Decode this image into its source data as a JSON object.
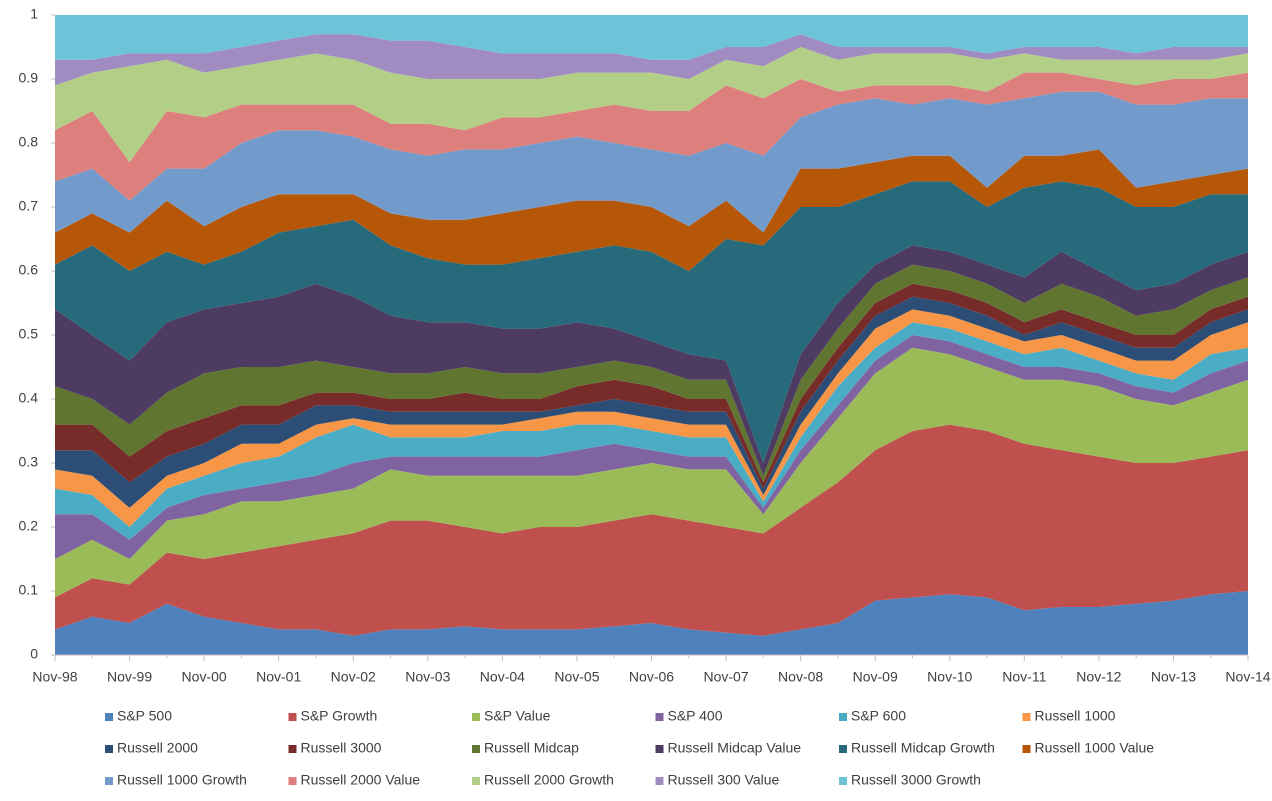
{
  "chart_data": {
    "type": "stacked_area",
    "categories": [
      "Nov-98",
      null,
      "Nov-99",
      null,
      "Nov-00",
      null,
      "Nov-01",
      null,
      "Nov-02",
      null,
      "Nov-03",
      null,
      "Nov-04",
      null,
      "Nov-05",
      null,
      "Nov-06",
      null,
      "Nov-07",
      null,
      "Nov-08",
      null,
      "Nov-09",
      null,
      "Nov-10",
      null,
      "Nov-11",
      null,
      "Nov-12",
      null,
      "Nov-13",
      null,
      "Nov-14"
    ],
    "ylim": [
      0,
      1
    ],
    "yticks": [
      0,
      0.1,
      0.2,
      0.3,
      0.4,
      0.5,
      0.6,
      0.7,
      0.8,
      0.9,
      1
    ],
    "legend": "bottom",
    "series": [
      {
        "name": "S&P 500",
        "color": "#4f81bd",
        "values": [
          0.04,
          0.06,
          0.05,
          0.08,
          0.06,
          0.05,
          0.04,
          0.04,
          0.03,
          0.04,
          0.04,
          0.045,
          0.04,
          0.04,
          0.04,
          0.045,
          0.05,
          0.04,
          0.035,
          0.03,
          0.04,
          0.05,
          0.085,
          0.09,
          0.095,
          0.09,
          0.07,
          0.075,
          0.075,
          0.08,
          0.085,
          0.095,
          0.1
        ]
      },
      {
        "name": "S&P Growth",
        "color": "#c0504d",
        "values": [
          0.05,
          0.06,
          0.06,
          0.08,
          0.09,
          0.11,
          0.13,
          0.14,
          0.16,
          0.17,
          0.17,
          0.155,
          0.15,
          0.16,
          0.16,
          0.165,
          0.17,
          0.17,
          0.165,
          0.16,
          0.19,
          0.22,
          0.235,
          0.26,
          0.265,
          0.26,
          0.26,
          0.245,
          0.235,
          0.22,
          0.215,
          0.215,
          0.22
        ]
      },
      {
        "name": "S&P Value",
        "color": "#9bbb59",
        "values": [
          0.06,
          0.06,
          0.04,
          0.05,
          0.07,
          0.08,
          0.07,
          0.07,
          0.07,
          0.08,
          0.07,
          0.08,
          0.09,
          0.08,
          0.08,
          0.08,
          0.08,
          0.08,
          0.09,
          0.03,
          0.07,
          0.1,
          0.12,
          0.13,
          0.11,
          0.1,
          0.1,
          0.11,
          0.11,
          0.1,
          0.09,
          0.1,
          0.11
        ]
      },
      {
        "name": "S&P 400",
        "color": "#8064a2",
        "values": [
          0.07,
          0.04,
          0.03,
          0.02,
          0.03,
          0.02,
          0.03,
          0.03,
          0.04,
          0.02,
          0.03,
          0.03,
          0.03,
          0.03,
          0.04,
          0.04,
          0.02,
          0.02,
          0.02,
          0.01,
          0.02,
          0.02,
          0.02,
          0.02,
          0.02,
          0.02,
          0.02,
          0.02,
          0.02,
          0.02,
          0.02,
          0.03,
          0.03
        ]
      },
      {
        "name": "S&P 600",
        "color": "#4bacc6",
        "values": [
          0.04,
          0.03,
          0.02,
          0.03,
          0.03,
          0.04,
          0.04,
          0.06,
          0.06,
          0.03,
          0.03,
          0.03,
          0.04,
          0.04,
          0.04,
          0.03,
          0.03,
          0.03,
          0.03,
          0.01,
          0.02,
          0.03,
          0.02,
          0.02,
          0.02,
          0.02,
          0.02,
          0.03,
          0.02,
          0.02,
          0.02,
          0.03,
          0.02
        ]
      },
      {
        "name": "Russell 1000",
        "color": "#f79646",
        "values": [
          0.03,
          0.03,
          0.03,
          0.02,
          0.02,
          0.03,
          0.02,
          0.02,
          0.01,
          0.02,
          0.02,
          0.02,
          0.01,
          0.02,
          0.02,
          0.02,
          0.02,
          0.02,
          0.02,
          0.01,
          0.02,
          0.02,
          0.03,
          0.02,
          0.02,
          0.02,
          0.02,
          0.02,
          0.02,
          0.02,
          0.03,
          0.03,
          0.04
        ]
      },
      {
        "name": "Russell 2000",
        "color": "#2c4d75",
        "values": [
          0.03,
          0.04,
          0.04,
          0.03,
          0.03,
          0.03,
          0.03,
          0.03,
          0.02,
          0.02,
          0.02,
          0.02,
          0.02,
          0.01,
          0.01,
          0.02,
          0.02,
          0.02,
          0.02,
          0.01,
          0.02,
          0.02,
          0.02,
          0.02,
          0.02,
          0.02,
          0.01,
          0.02,
          0.02,
          0.02,
          0.02,
          0.02,
          0.02
        ]
      },
      {
        "name": "Russell 3000",
        "color": "#772c2a",
        "values": [
          0.04,
          0.04,
          0.04,
          0.04,
          0.04,
          0.03,
          0.03,
          0.02,
          0.02,
          0.02,
          0.02,
          0.03,
          0.02,
          0.02,
          0.03,
          0.03,
          0.03,
          0.02,
          0.02,
          0.01,
          0.02,
          0.02,
          0.02,
          0.02,
          0.02,
          0.02,
          0.02,
          0.02,
          0.02,
          0.02,
          0.02,
          0.02,
          0.02
        ]
      },
      {
        "name": "Russell Midcap",
        "color": "#5f7530",
        "values": [
          0.06,
          0.04,
          0.05,
          0.06,
          0.07,
          0.06,
          0.06,
          0.05,
          0.04,
          0.04,
          0.04,
          0.04,
          0.04,
          0.04,
          0.03,
          0.03,
          0.03,
          0.03,
          0.03,
          0.01,
          0.03,
          0.03,
          0.03,
          0.03,
          0.03,
          0.03,
          0.03,
          0.04,
          0.04,
          0.03,
          0.04,
          0.03,
          0.03
        ]
      },
      {
        "name": "Russell Midcap Value",
        "color": "#4d3b62",
        "values": [
          0.12,
          0.1,
          0.1,
          0.11,
          0.1,
          0.1,
          0.11,
          0.12,
          0.11,
          0.09,
          0.08,
          0.07,
          0.07,
          0.07,
          0.07,
          0.05,
          0.04,
          0.04,
          0.03,
          0.02,
          0.04,
          0.04,
          0.03,
          0.03,
          0.03,
          0.03,
          0.04,
          0.05,
          0.04,
          0.04,
          0.04,
          0.04,
          0.04
        ]
      },
      {
        "name": "Russell Midcap Growth",
        "color": "#276a7c",
        "values": [
          0.07,
          0.14,
          0.14,
          0.11,
          0.07,
          0.08,
          0.1,
          0.09,
          0.12,
          0.11,
          0.1,
          0.09,
          0.1,
          0.11,
          0.11,
          0.13,
          0.14,
          0.13,
          0.19,
          0.34,
          0.23,
          0.15,
          0.11,
          0.1,
          0.11,
          0.09,
          0.14,
          0.11,
          0.13,
          0.13,
          0.12,
          0.11,
          0.09
        ]
      },
      {
        "name": "Russell 1000 Value",
        "color": "#b65708",
        "values": [
          0.05,
          0.05,
          0.06,
          0.08,
          0.06,
          0.07,
          0.06,
          0.05,
          0.04,
          0.05,
          0.06,
          0.07,
          0.08,
          0.08,
          0.08,
          0.07,
          0.07,
          0.07,
          0.06,
          0.02,
          0.06,
          0.06,
          0.05,
          0.04,
          0.04,
          0.03,
          0.05,
          0.04,
          0.06,
          0.03,
          0.04,
          0.03,
          0.04
        ]
      },
      {
        "name": "Russell 1000 Growth",
        "color": "#729aca",
        "values": [
          0.08,
          0.07,
          0.05,
          0.05,
          0.09,
          0.1,
          0.1,
          0.1,
          0.09,
          0.1,
          0.1,
          0.11,
          0.1,
          0.1,
          0.1,
          0.09,
          0.09,
          0.11,
          0.09,
          0.12,
          0.08,
          0.1,
          0.1,
          0.08,
          0.09,
          0.13,
          0.09,
          0.1,
          0.09,
          0.13,
          0.12,
          0.12,
          0.11
        ]
      },
      {
        "name": "Russell 2000 Value",
        "color": "#dd7f7d",
        "values": [
          0.08,
          0.09,
          0.06,
          0.09,
          0.08,
          0.06,
          0.04,
          0.04,
          0.05,
          0.04,
          0.05,
          0.03,
          0.05,
          0.04,
          0.04,
          0.06,
          0.06,
          0.07,
          0.09,
          0.09,
          0.06,
          0.02,
          0.02,
          0.03,
          0.02,
          0.02,
          0.04,
          0.03,
          0.02,
          0.03,
          0.04,
          0.03,
          0.04
        ]
      },
      {
        "name": "Russell 2000 Growth",
        "color": "#b3cf87",
        "values": [
          0.07,
          0.06,
          0.15,
          0.08,
          0.07,
          0.06,
          0.07,
          0.08,
          0.07,
          0.08,
          0.07,
          0.08,
          0.06,
          0.06,
          0.06,
          0.05,
          0.06,
          0.05,
          0.04,
          0.05,
          0.05,
          0.05,
          0.05,
          0.05,
          0.05,
          0.05,
          0.03,
          0.02,
          0.03,
          0.04,
          0.03,
          0.03,
          0.03
        ]
      },
      {
        "name": "Russell 300 Value",
        "color": "#a08cc0",
        "values": [
          0.04,
          0.02,
          0.02,
          0.01,
          0.03,
          0.03,
          0.03,
          0.03,
          0.04,
          0.05,
          0.06,
          0.05,
          0.04,
          0.04,
          0.03,
          0.03,
          0.02,
          0.03,
          0.02,
          0.03,
          0.02,
          0.02,
          0.01,
          0.01,
          0.01,
          0.01,
          0.01,
          0.02,
          0.02,
          0.01,
          0.02,
          0.02,
          0.01
        ]
      },
      {
        "name": "Russell 3000 Growth",
        "color": "#6dc3d8",
        "values": [
          0.07,
          0.07,
          0.06,
          0.06,
          0.06,
          0.05,
          0.04,
          0.03,
          0.03,
          0.04,
          0.04,
          0.05,
          0.06,
          0.06,
          0.06,
          0.06,
          0.07,
          0.07,
          0.05,
          0.05,
          0.03,
          0.05,
          0.05,
          0.05,
          0.05,
          0.06,
          0.05,
          0.05,
          0.05,
          0.06,
          0.05,
          0.05,
          0.05
        ]
      }
    ]
  }
}
